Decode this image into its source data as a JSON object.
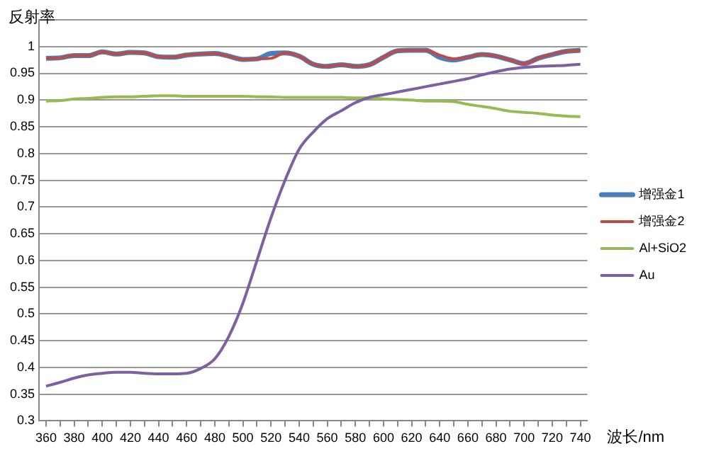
{
  "chart_data": {
    "type": "line",
    "xlabel": "波长/nm",
    "ylabel": "反射率",
    "x": [
      360,
      370,
      380,
      390,
      400,
      410,
      420,
      430,
      440,
      450,
      460,
      470,
      480,
      490,
      500,
      510,
      520,
      530,
      540,
      550,
      560,
      570,
      580,
      590,
      600,
      610,
      620,
      630,
      640,
      650,
      660,
      670,
      680,
      690,
      700,
      710,
      720,
      730,
      740
    ],
    "series": [
      {
        "name": "增强金1",
        "color": "#4a7ebb",
        "values": [
          0.978,
          0.979,
          0.983,
          0.983,
          0.99,
          0.986,
          0.989,
          0.988,
          0.981,
          0.98,
          0.984,
          0.986,
          0.987,
          0.982,
          0.976,
          0.977,
          0.987,
          0.988,
          0.982,
          0.967,
          0.963,
          0.966,
          0.963,
          0.966,
          0.98,
          0.992,
          0.993,
          0.993,
          0.98,
          0.975,
          0.98,
          0.985,
          0.982,
          0.975,
          0.968,
          0.978,
          0.985,
          0.991,
          0.993
        ]
      },
      {
        "name": "增强金2",
        "color": "#be4b48",
        "values": [
          0.978,
          0.979,
          0.983,
          0.983,
          0.99,
          0.986,
          0.989,
          0.988,
          0.981,
          0.98,
          0.984,
          0.986,
          0.987,
          0.982,
          0.976,
          0.977,
          0.978,
          0.988,
          0.982,
          0.967,
          0.963,
          0.966,
          0.963,
          0.966,
          0.98,
          0.992,
          0.993,
          0.993,
          0.984,
          0.977,
          0.98,
          0.985,
          0.982,
          0.975,
          0.968,
          0.978,
          0.986,
          0.991,
          0.993
        ]
      },
      {
        "name": "Al+SiO2",
        "color": "#98b954",
        "values": [
          0.898,
          0.899,
          0.902,
          0.903,
          0.905,
          0.906,
          0.906,
          0.907,
          0.908,
          0.908,
          0.907,
          0.907,
          0.907,
          0.907,
          0.907,
          0.906,
          0.906,
          0.905,
          0.905,
          0.905,
          0.905,
          0.905,
          0.904,
          0.904,
          0.902,
          0.901,
          0.9,
          0.898,
          0.898,
          0.897,
          0.892,
          0.888,
          0.884,
          0.879,
          0.877,
          0.875,
          0.872,
          0.87,
          0.869
        ]
      },
      {
        "name": "Au",
        "color": "#7d60a0",
        "values": [
          0.365,
          0.372,
          0.38,
          0.386,
          0.389,
          0.391,
          0.391,
          0.389,
          0.388,
          0.388,
          0.389,
          0.398,
          0.416,
          0.458,
          0.52,
          0.6,
          0.68,
          0.75,
          0.808,
          0.84,
          0.865,
          0.88,
          0.895,
          0.905,
          0.91,
          0.915,
          0.92,
          0.925,
          0.93,
          0.935,
          0.94,
          0.947,
          0.953,
          0.958,
          0.961,
          0.963,
          0.964,
          0.965,
          0.967
        ]
      }
    ],
    "xlim": [
      355,
      745
    ],
    "xticks": [
      360,
      {
        "value": 370,
        "label": null
      },
      380,
      {
        "value": 390,
        "label": null
      },
      400,
      {
        "value": 410,
        "label": null
      },
      420,
      {
        "value": 430,
        "label": null
      },
      440,
      {
        "value": 450,
        "label": null
      },
      460,
      {
        "value": 470,
        "label": null
      },
      480,
      {
        "value": 490,
        "label": null
      },
      500,
      {
        "value": 510,
        "label": null
      },
      520,
      {
        "value": 530,
        "label": null
      },
      540,
      {
        "value": 550,
        "label": null
      },
      560,
      {
        "value": 570,
        "label": null
      },
      580,
      {
        "value": 590,
        "label": null
      },
      600,
      {
        "value": 610,
        "label": null
      },
      620,
      {
        "value": 630,
        "label": null
      },
      640,
      {
        "value": 650,
        "label": null
      },
      660,
      {
        "value": 670,
        "label": null
      },
      680,
      {
        "value": 690,
        "label": null
      },
      700,
      {
        "value": 710,
        "label": null
      },
      720,
      {
        "value": 730,
        "label": null
      },
      740
    ],
    "ylim": [
      0.3,
      1.05
    ],
    "yticks": [
      0.3,
      0.35,
      0.4,
      0.45,
      0.5,
      0.55,
      0.6,
      0.65,
      0.7,
      0.75,
      0.8,
      0.85,
      0.9,
      0.95,
      1,
      {
        "value": 1.05,
        "label": null
      }
    ],
    "grid": "y",
    "legend": "right",
    "marker": "none",
    "line_style": "solid"
  }
}
